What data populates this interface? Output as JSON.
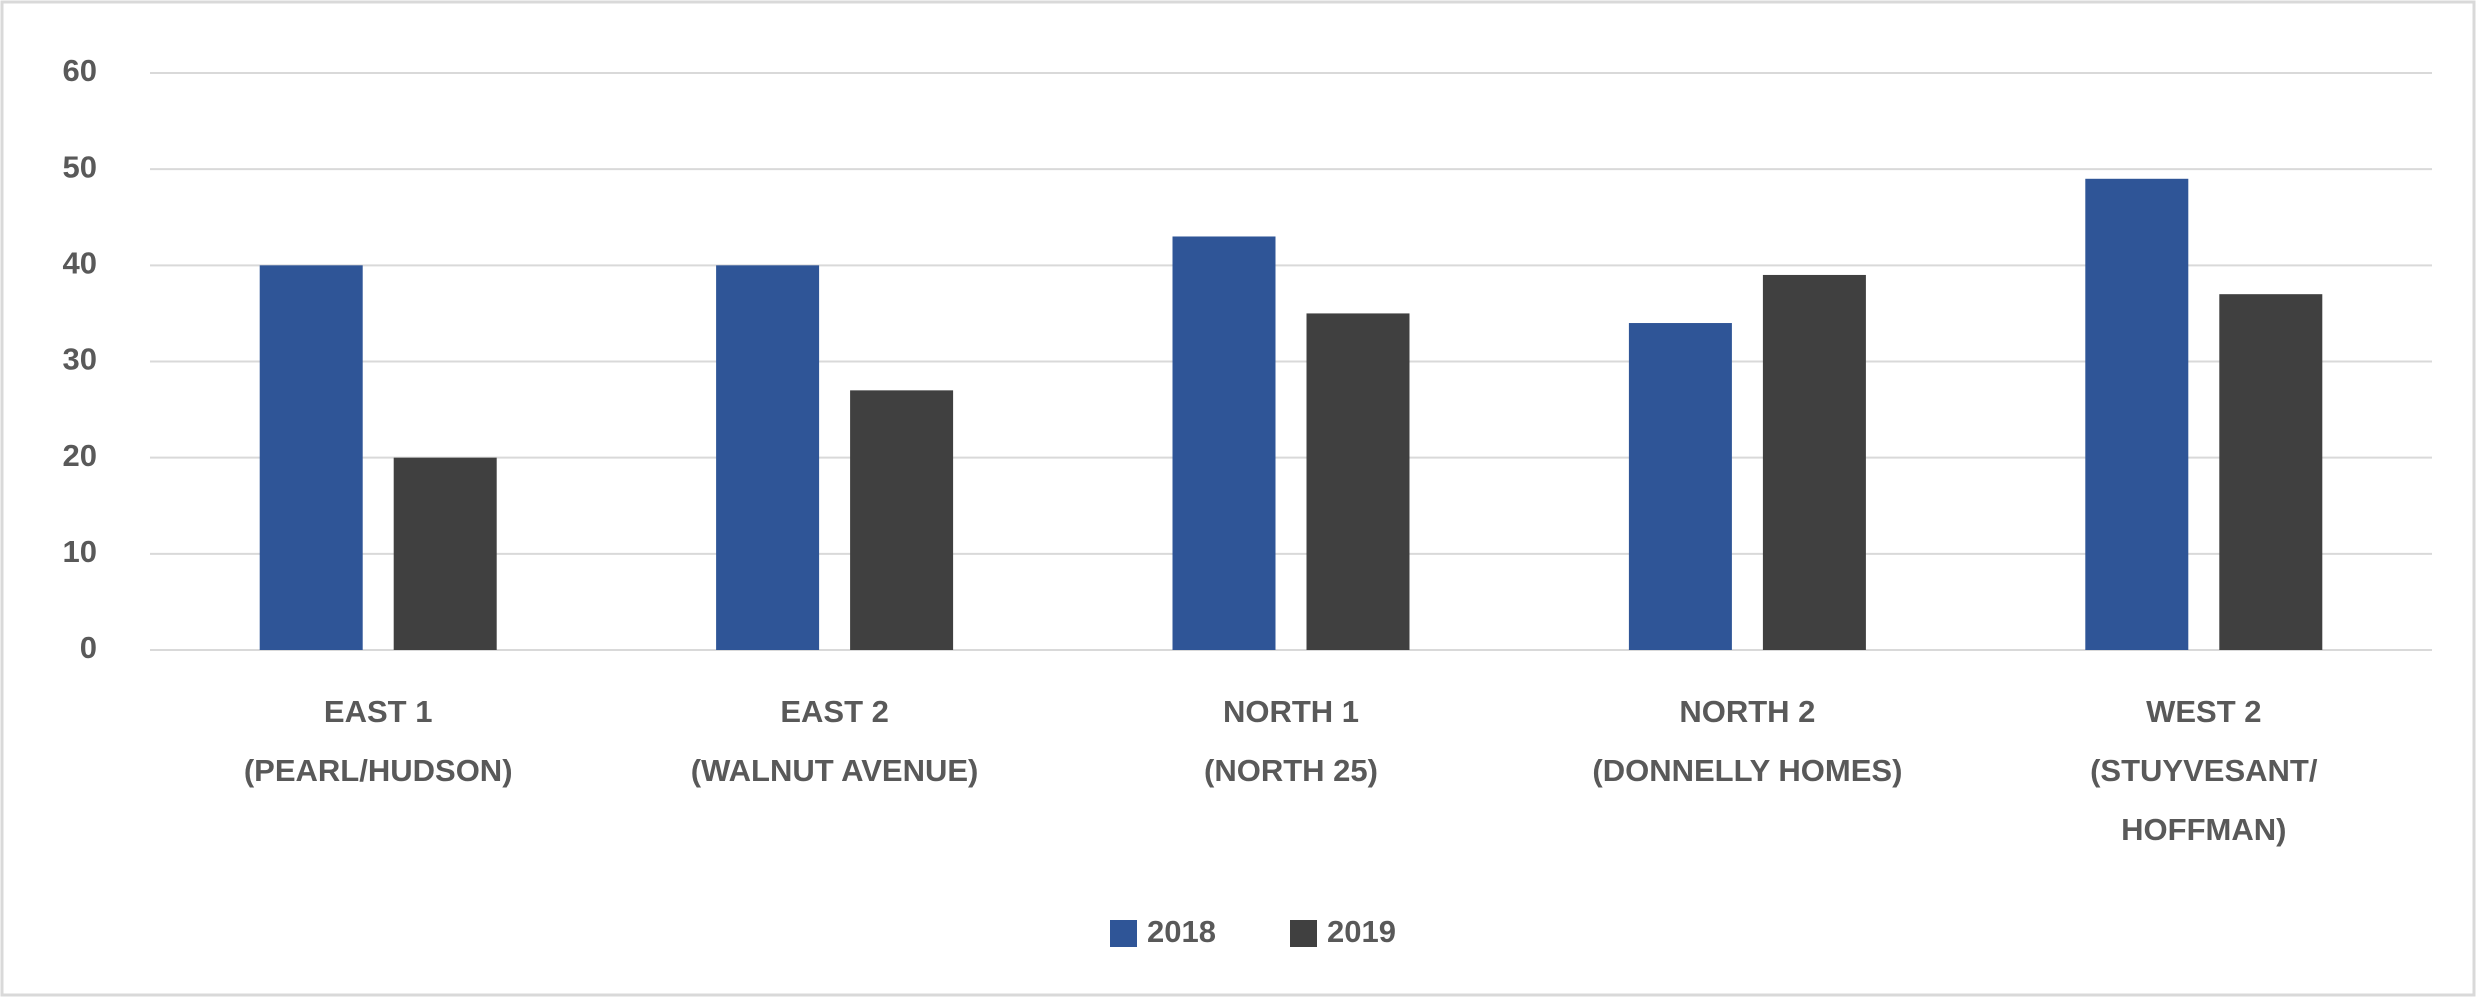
{
  "chart_data": {
    "type": "bar",
    "categories": [
      [
        "EAST 1",
        "(PEARL/HUDSON)"
      ],
      [
        "EAST 2",
        "(WALNUT AVENUE)"
      ],
      [
        "NORTH 1",
        "(NORTH 25)"
      ],
      [
        "NORTH 2",
        "(DONNELLY HOMES)"
      ],
      [
        "WEST 2",
        "(STUYVESANT/",
        "HOFFMAN)"
      ]
    ],
    "series": [
      {
        "name": "2018",
        "color": "#2f5597",
        "values": [
          40,
          40,
          43,
          34,
          49
        ]
      },
      {
        "name": "2019",
        "color": "#404040",
        "values": [
          20,
          27,
          35,
          39,
          37
        ]
      }
    ],
    "ylim": [
      0,
      60
    ],
    "yticks": [
      0,
      10,
      20,
      30,
      40,
      50,
      60
    ],
    "grid": true,
    "legend": "bottom"
  }
}
